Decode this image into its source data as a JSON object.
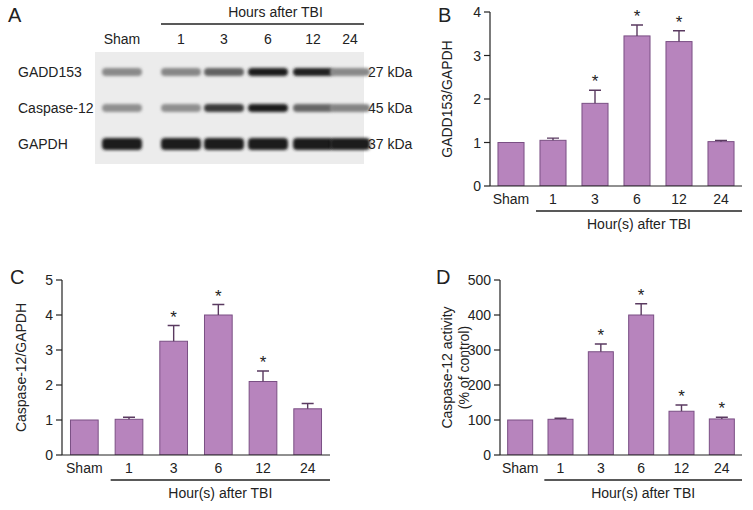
{
  "chart_data": [
    {
      "type": "bar",
      "title": "B",
      "categories": [
        "Sham",
        "1",
        "3",
        "6",
        "12",
        "24"
      ],
      "values": [
        1.0,
        1.05,
        1.9,
        3.45,
        3.32,
        1.02
      ],
      "errors": [
        0,
        0.05,
        0.3,
        0.25,
        0.25,
        0.03
      ],
      "significance": [
        null,
        null,
        "*",
        "*",
        "*",
        null
      ],
      "color": "#b784bd",
      "ylabel": [
        "GADD153/GAPDH"
      ],
      "xlabel": "Hour(s) after TBI",
      "ylim": [
        0,
        4
      ],
      "yticks": [
        0,
        1,
        2,
        3,
        4
      ],
      "grid": false
    },
    {
      "type": "bar",
      "title": "C",
      "categories": [
        "Sham",
        "1",
        "3",
        "6",
        "12",
        "24"
      ],
      "values": [
        1.0,
        1.02,
        3.25,
        4.0,
        2.1,
        1.32
      ],
      "errors": [
        0,
        0.06,
        0.45,
        0.3,
        0.3,
        0.15
      ],
      "significance": [
        null,
        null,
        "*",
        "*",
        "*",
        null
      ],
      "color": "#b784bd",
      "ylabel": [
        "Caspase-12/GAPDH"
      ],
      "xlabel": "Hour(s) after TBI",
      "ylim": [
        0,
        5
      ],
      "yticks": [
        0,
        1,
        2,
        3,
        4,
        5
      ],
      "grid": false
    },
    {
      "type": "bar",
      "title": "D",
      "categories": [
        "Sham",
        "1",
        "3",
        "6",
        "12",
        "24"
      ],
      "values": [
        100,
        102,
        295,
        400,
        125,
        103
      ],
      "errors": [
        0,
        3,
        22,
        32,
        18,
        5
      ],
      "significance": [
        null,
        null,
        "*",
        "*",
        "*",
        "*"
      ],
      "color": "#b784bd",
      "ylabel": [
        "Caspase-12 activity",
        "(% of control)"
      ],
      "xlabel": "Hour(s) after TBI",
      "ylim": [
        0,
        500
      ],
      "yticks": [
        0,
        100,
        200,
        300,
        400,
        500
      ],
      "grid": false
    }
  ],
  "blot": {
    "panel": "A",
    "header": "Hours after TBI",
    "lanes": [
      "Sham",
      "1",
      "3",
      "6",
      "12",
      "24"
    ],
    "rows": [
      {
        "name": "GADD153",
        "size": "27 kDa"
      },
      {
        "name": "Caspase-12",
        "size": "45 kDa"
      },
      {
        "name": "GAPDH",
        "size": "37 kDa"
      }
    ]
  }
}
